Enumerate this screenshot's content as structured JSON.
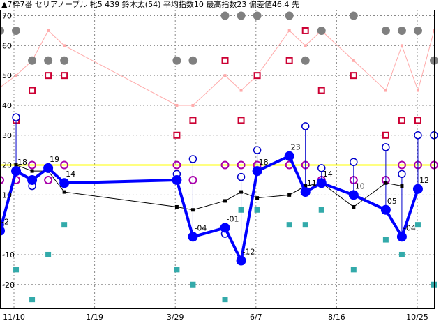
{
  "chart_data": {
    "type": "line",
    "title": "▲7枠7番 セリアノーブル 牝5 439 鈴木太(54) 平均指数10 最高指数23 偏差値46.4 先",
    "xlabel": "",
    "ylabel": "",
    "ylim": [
      -28,
      72
    ],
    "yticks": [
      -20,
      -10,
      10,
      20,
      30,
      40,
      50,
      60,
      70
    ],
    "x_tick_labels": [
      "11/10",
      "1/19",
      "3/29",
      "6/7",
      "8/16",
      "10/25"
    ],
    "reference_line": 20,
    "colors": {
      "main": "#0000ff",
      "average": "#000000",
      "reference": "#ffff00",
      "pink": "#ffaaaa",
      "gray": "#808080",
      "red_square": "#cc0033",
      "teal_square": "#33aaaa",
      "purple_circle": "#aa00aa",
      "blue_circle": "#0000cc"
    },
    "main_series": [
      {
        "i": 0,
        "value": -2,
        "label": "-2"
      },
      {
        "i": 1,
        "value": 18,
        "label": "18"
      },
      {
        "i": 2,
        "value": 15,
        "label": ""
      },
      {
        "i": 3,
        "value": 19,
        "label": "19"
      },
      {
        "i": 4,
        "value": 14,
        "label": "14"
      },
      {
        "i": 11,
        "value": 15,
        "label": ""
      },
      {
        "i": 12,
        "value": -4,
        "label": "-04"
      },
      {
        "i": 14,
        "value": -1,
        "label": "-01"
      },
      {
        "i": 15,
        "value": -12,
        "label": "-12"
      },
      {
        "i": 16,
        "value": 18,
        "label": "18"
      },
      {
        "i": 18,
        "value": 23,
        "label": "23"
      },
      {
        "i": 19,
        "value": 11,
        "label": "11"
      },
      {
        "i": 20,
        "value": 14,
        "label": "14"
      },
      {
        "i": 22,
        "value": 10,
        "label": "10"
      },
      {
        "i": 24,
        "value": 5,
        "label": "05"
      },
      {
        "i": 25,
        "value": -4,
        "label": "-04"
      },
      {
        "i": 26,
        "value": 12,
        "label": "12"
      }
    ],
    "average_series": [
      {
        "i": 1,
        "value": 20
      },
      {
        "i": 2,
        "value": 18
      },
      {
        "i": 3,
        "value": 18
      },
      {
        "i": 4,
        "value": 11
      },
      {
        "i": 11,
        "value": 6
      },
      {
        "i": 12,
        "value": 5
      },
      {
        "i": 14,
        "value": 8
      },
      {
        "i": 15,
        "value": 11
      },
      {
        "i": 16,
        "value": 9
      },
      {
        "i": 18,
        "value": 10
      },
      {
        "i": 19,
        "value": 13
      },
      {
        "i": 20,
        "value": 14
      },
      {
        "i": 22,
        "value": 6
      },
      {
        "i": 24,
        "value": 14
      },
      {
        "i": 25,
        "value": 13
      },
      {
        "i": 26,
        "value": 13
      }
    ],
    "pink_series": [
      {
        "i": 0,
        "value": 46
      },
      {
        "i": 1,
        "value": 50
      },
      {
        "i": 2,
        "value": 55
      },
      {
        "i": 3,
        "value": 65
      },
      {
        "i": 4,
        "value": 60
      },
      {
        "i": 11,
        "value": 40
      },
      {
        "i": 12,
        "value": 40
      },
      {
        "i": 14,
        "value": 50
      },
      {
        "i": 15,
        "value": 45
      },
      {
        "i": 16,
        "value": 50
      },
      {
        "i": 18,
        "value": 65
      },
      {
        "i": 19,
        "value": 60
      },
      {
        "i": 20,
        "value": 65
      },
      {
        "i": 22,
        "value": 55
      },
      {
        "i": 24,
        "value": 45
      },
      {
        "i": 25,
        "value": 60
      },
      {
        "i": 26,
        "value": 45
      },
      {
        "i": 27,
        "value": 65
      }
    ],
    "gray_circles": [
      {
        "i": 0,
        "value": 65
      },
      {
        "i": 1,
        "value": 65
      },
      {
        "i": 2,
        "value": 55
      },
      {
        "i": 3,
        "value": 55
      },
      {
        "i": 4,
        "value": 55
      },
      {
        "i": 11,
        "value": 55
      },
      {
        "i": 12,
        "value": 55
      },
      {
        "i": 14,
        "value": 70
      },
      {
        "i": 15,
        "value": 70
      },
      {
        "i": 16,
        "value": 70
      },
      {
        "i": 18,
        "value": 70
      },
      {
        "i": 19,
        "value": 55
      },
      {
        "i": 20,
        "value": 65
      },
      {
        "i": 22,
        "value": 70
      },
      {
        "i": 24,
        "value": 65
      },
      {
        "i": 25,
        "value": 65
      },
      {
        "i": 26,
        "value": 65
      },
      {
        "i": 27,
        "value": 55
      }
    ],
    "red_squares": [
      {
        "i": 1,
        "value": 35
      },
      {
        "i": 2,
        "value": 45
      },
      {
        "i": 3,
        "value": 50
      },
      {
        "i": 4,
        "value": 50
      },
      {
        "i": 11,
        "value": 30
      },
      {
        "i": 12,
        "value": 35
      },
      {
        "i": 14,
        "value": 55
      },
      {
        "i": 15,
        "value": 35
      },
      {
        "i": 16,
        "value": 50
      },
      {
        "i": 18,
        "value": 55
      },
      {
        "i": 19,
        "value": 65
      },
      {
        "i": 20,
        "value": 45
      },
      {
        "i": 22,
        "value": 50
      },
      {
        "i": 24,
        "value": 30
      },
      {
        "i": 25,
        "value": 35
      },
      {
        "i": 26,
        "value": 35
      }
    ],
    "teal_squares": [
      {
        "i": 1,
        "value": -15
      },
      {
        "i": 2,
        "value": -25
      },
      {
        "i": 3,
        "value": -10
      },
      {
        "i": 4,
        "value": 0
      },
      {
        "i": 11,
        "value": -15
      },
      {
        "i": 12,
        "value": -20
      },
      {
        "i": 14,
        "value": -25
      },
      {
        "i": 15,
        "value": 5
      },
      {
        "i": 16,
        "value": 5
      },
      {
        "i": 18,
        "value": 0
      },
      {
        "i": 19,
        "value": 0
      },
      {
        "i": 20,
        "value": 5
      },
      {
        "i": 22,
        "value": -15
      },
      {
        "i": 24,
        "value": -5
      },
      {
        "i": 25,
        "value": -10
      },
      {
        "i": 26,
        "value": 0
      },
      {
        "i": 27,
        "value": -20
      }
    ],
    "purple_circles": [
      {
        "i": 0,
        "value": 15
      },
      {
        "i": 1,
        "value": 15
      },
      {
        "i": 2,
        "value": 20
      },
      {
        "i": 3,
        "value": 15
      },
      {
        "i": 4,
        "value": 20
      },
      {
        "i": 11,
        "value": 20
      },
      {
        "i": 12,
        "value": 15
      },
      {
        "i": 14,
        "value": 20
      },
      {
        "i": 15,
        "value": 20
      },
      {
        "i": 16,
        "value": 20
      },
      {
        "i": 18,
        "value": 20
      },
      {
        "i": 19,
        "value": 20
      },
      {
        "i": 20,
        "value": 15
      },
      {
        "i": 22,
        "value": 15
      },
      {
        "i": 24,
        "value": 15
      },
      {
        "i": 25,
        "value": 20
      },
      {
        "i": 26,
        "value": 20
      },
      {
        "i": 27,
        "value": 20
      }
    ],
    "blue_circles": [
      {
        "i": 0,
        "value": 0
      },
      {
        "i": 1,
        "value": 36
      },
      {
        "i": 2,
        "value": 13
      },
      {
        "i": 3,
        "value": 19
      },
      {
        "i": 11,
        "value": 17
      },
      {
        "i": 12,
        "value": 22
      },
      {
        "i": 14,
        "value": -3
      },
      {
        "i": 15,
        "value": 16
      },
      {
        "i": 16,
        "value": 25
      },
      {
        "i": 19,
        "value": 33
      },
      {
        "i": 20,
        "value": 19
      },
      {
        "i": 22,
        "value": 21
      },
      {
        "i": 24,
        "value": 26
      },
      {
        "i": 25,
        "value": 17
      },
      {
        "i": 26,
        "value": 30
      },
      {
        "i": 27,
        "value": 30
      }
    ]
  }
}
